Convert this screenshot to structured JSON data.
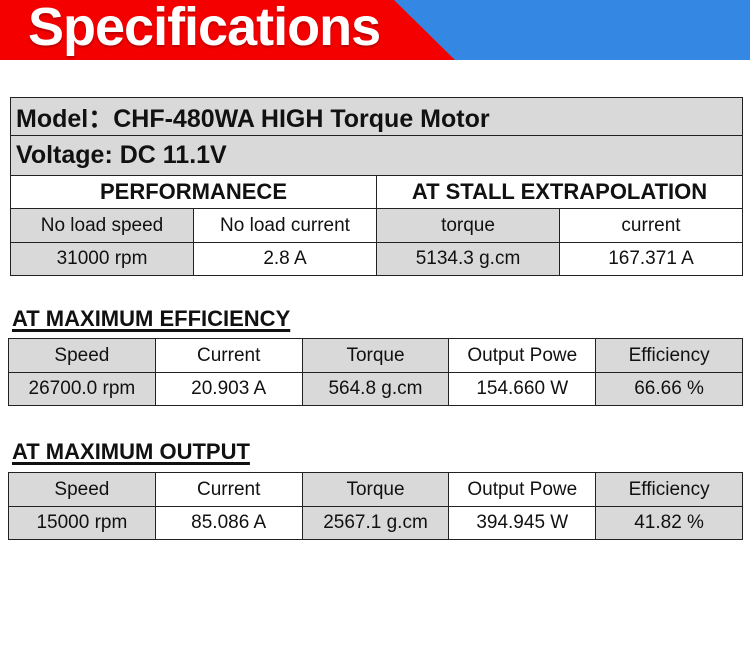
{
  "banner": {
    "title": "Specifications",
    "colors": {
      "left": "#f50000",
      "right": "#3488e4"
    }
  },
  "spec": {
    "model": "Model：CHF-480WA  HIGH Torque Motor",
    "voltage": "Voltage:  DC 11.1V",
    "performance_header": "PERFORMANECE",
    "stall_header": "AT STALL EXTRAPOLATION",
    "labels": [
      "No load speed",
      "No load current",
      "torque",
      "current"
    ],
    "values": [
      "31000 rpm",
      "2.8 A",
      "5134.3 g.cm",
      "167.371 A"
    ]
  },
  "max_efficiency": {
    "title": "AT MAXIMUM EFFICIENCY",
    "headers": [
      "Speed",
      "Current",
      "Torque",
      "Output Powe",
      "Efficiency"
    ],
    "values": [
      "26700.0 rpm",
      "20.903 A",
      "564.8 g.cm",
      "154.660 W",
      "66.66 %"
    ]
  },
  "max_output": {
    "title": "AT MAXIMUM OUTPUT",
    "headers": [
      "Speed",
      "Current",
      "Torque",
      "Output Powe",
      "Efficiency"
    ],
    "values": [
      "15000 rpm",
      "85.086 A",
      "2567.1 g.cm",
      "394.945 W",
      "41.82 %"
    ]
  }
}
